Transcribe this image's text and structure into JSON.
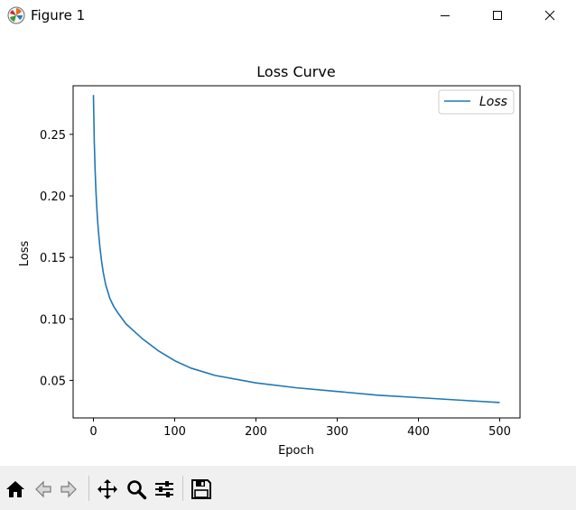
{
  "window": {
    "title": "Figure 1",
    "icons": {
      "app": "matplotlib-logo-icon",
      "minimize": "minimize-icon",
      "maximize": "maximize-icon",
      "close": "close-icon"
    }
  },
  "toolbar": {
    "buttons": [
      {
        "name": "home-button",
        "icon": "home-icon"
      },
      {
        "name": "back-button",
        "icon": "back-arrow-icon"
      },
      {
        "name": "forward-button",
        "icon": "forward-arrow-icon"
      },
      {
        "name": "pan-button",
        "icon": "pan-move-icon"
      },
      {
        "name": "zoom-button",
        "icon": "zoom-magnifier-icon"
      },
      {
        "name": "configure-subplots-button",
        "icon": "sliders-icon"
      },
      {
        "name": "save-figure-button",
        "icon": "floppy-disk-icon"
      }
    ]
  },
  "chart_data": {
    "type": "line",
    "title": "Loss Curve",
    "xlabel": "Epoch",
    "ylabel": "Loss",
    "xlim": [
      -25,
      525
    ],
    "ylim": [
      0.0195,
      0.2895
    ],
    "xticks": [
      0,
      100,
      200,
      300,
      400,
      500
    ],
    "xtick_labels": [
      "0",
      "100",
      "200",
      "300",
      "400",
      "500"
    ],
    "yticks": [
      0.05,
      0.1,
      0.15,
      0.2,
      0.25
    ],
    "ytick_labels": [
      "0.05",
      "0.10",
      "0.15",
      "0.20",
      "0.25"
    ],
    "grid": false,
    "legend_position": "top-right",
    "series": [
      {
        "name": "Loss",
        "color": "#1f77b4",
        "x": [
          0,
          1,
          2,
          3,
          4,
          5,
          6,
          8,
          10,
          12,
          15,
          20,
          25,
          30,
          40,
          50,
          60,
          70,
          80,
          100,
          120,
          150,
          200,
          250,
          300,
          350,
          400,
          450,
          500
        ],
        "y": [
          0.282,
          0.245,
          0.222,
          0.205,
          0.192,
          0.181,
          0.172,
          0.158,
          0.147,
          0.138,
          0.128,
          0.117,
          0.11,
          0.105,
          0.096,
          0.09,
          0.084,
          0.079,
          0.074,
          0.066,
          0.06,
          0.054,
          0.048,
          0.044,
          0.041,
          0.038,
          0.036,
          0.034,
          0.032
        ]
      }
    ]
  }
}
